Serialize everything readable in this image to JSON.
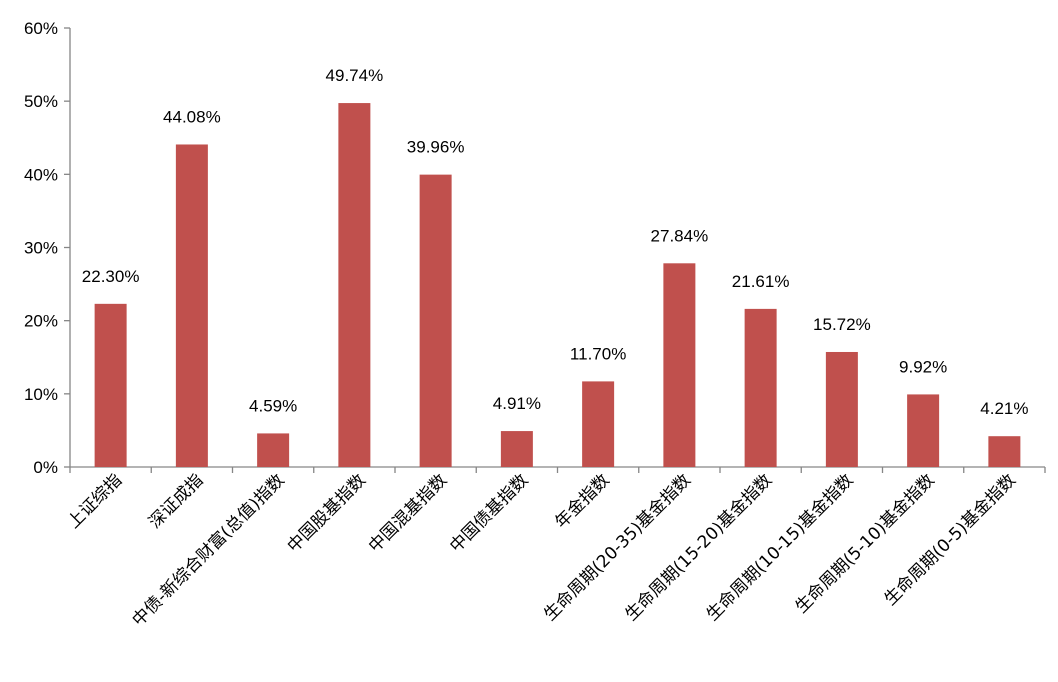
{
  "chart_data": {
    "type": "bar",
    "title": "",
    "xlabel": "",
    "ylabel": "",
    "ylim": [
      0,
      60
    ],
    "yticks": [
      0,
      10,
      20,
      30,
      40,
      50,
      60
    ],
    "ytick_labels": [
      "0%",
      "10%",
      "20%",
      "30%",
      "40%",
      "50%",
      "60%"
    ],
    "grid": false,
    "legend": "none",
    "bar_color": "#c0504d",
    "categories": [
      "上证综指",
      "深证成指",
      "中债-新综合财富(总值)指数",
      "中国股基指数",
      "中国混基指数",
      "中国债基指数",
      "年金指数",
      "生命周期(20-35)基金指数",
      "生命周期(15-20)基金指数",
      "生命周期(10-15)基金指数",
      "生命周期(5-10)基金指数",
      "生命周期(0-5)基金指数"
    ],
    "values": [
      22.3,
      44.08,
      4.59,
      49.74,
      39.96,
      4.91,
      11.7,
      27.84,
      21.61,
      15.72,
      9.92,
      4.21
    ],
    "value_labels": [
      "22.30%",
      "44.08%",
      "4.59%",
      "49.74%",
      "39.96%",
      "4.91%",
      "11.70%",
      "27.84%",
      "21.61%",
      "15.72%",
      "9.92%",
      "4.21%"
    ]
  }
}
